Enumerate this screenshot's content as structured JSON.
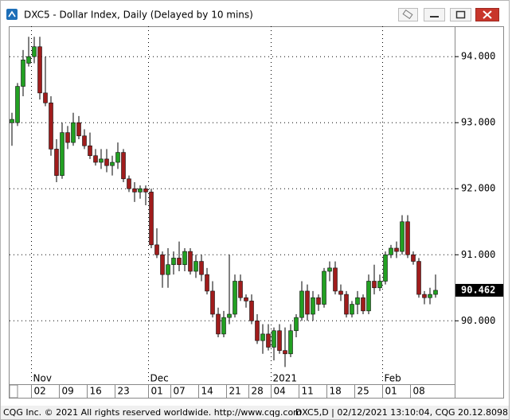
{
  "window": {
    "title": "DXC5 - Dollar Index, Daily (Delayed by 10 mins)"
  },
  "footer": {
    "copyright": "CQG Inc. © 2021 All rights reserved worldwide. http://www.cqg.com",
    "status": "DXC5,D | 02/12/2021 13:10:04, CQG 20.12.8098"
  },
  "chart_data": {
    "type": "candlestick",
    "categories": [
      null,
      null,
      null,
      null,
      "02",
      null,
      null,
      null,
      null,
      "09",
      null,
      null,
      null,
      null,
      "16",
      null,
      null,
      null,
      null,
      "23",
      null,
      null,
      null,
      null,
      null,
      "01",
      null,
      null,
      null,
      "07",
      null,
      null,
      null,
      null,
      "14",
      null,
      null,
      null,
      null,
      "21",
      null,
      null,
      null,
      "28",
      null,
      null,
      null,
      "04",
      null,
      null,
      null,
      null,
      "11",
      null,
      null,
      null,
      null,
      "18",
      null,
      null,
      null,
      null,
      "25",
      null,
      null,
      null,
      null,
      "01",
      null,
      null,
      null,
      null,
      "08",
      null,
      null,
      null,
      null
    ],
    "months": [
      null,
      null,
      null,
      null,
      "Nov",
      null,
      null,
      null,
      null,
      null,
      null,
      null,
      null,
      null,
      null,
      null,
      null,
      null,
      null,
      null,
      null,
      null,
      null,
      null,
      null,
      "Dec",
      null,
      null,
      null,
      null,
      null,
      null,
      null,
      null,
      null,
      null,
      null,
      null,
      null,
      null,
      null,
      null,
      null,
      null,
      null,
      null,
      null,
      "2021",
      null,
      null,
      null,
      null,
      null,
      null,
      null,
      null,
      null,
      null,
      null,
      null,
      null,
      null,
      null,
      null,
      null,
      null,
      null,
      "Feb",
      null,
      null,
      null,
      null,
      null,
      null,
      null,
      null,
      null
    ],
    "open": [
      93.0,
      93.0,
      93.55,
      93.9,
      94.0,
      94.15,
      93.45,
      93.3,
      92.6,
      92.2,
      92.85,
      92.7,
      93.0,
      92.8,
      92.65,
      92.5,
      92.4,
      92.45,
      92.35,
      92.4,
      92.55,
      92.15,
      92.0,
      91.95,
      92.0,
      91.95,
      91.15,
      91.0,
      90.7,
      90.85,
      90.95,
      90.85,
      91.05,
      90.75,
      90.9,
      90.7,
      90.45,
      90.1,
      89.8,
      90.05,
      90.1,
      90.6,
      90.35,
      90.3,
      90.0,
      89.7,
      89.8,
      89.6,
      89.85,
      89.55,
      89.5,
      89.85,
      90.05,
      90.45,
      90.1,
      90.35,
      90.25,
      90.75,
      90.8,
      90.45,
      90.4,
      90.1,
      90.25,
      90.35,
      90.15,
      90.6,
      90.5,
      90.6,
      91.0,
      91.1,
      91.05,
      91.5,
      91.0,
      90.9,
      90.4,
      90.35,
      90.4
    ],
    "high": [
      93.15,
      93.6,
      94.1,
      94.3,
      94.3,
      94.3,
      94.0,
      93.4,
      92.75,
      93.0,
      92.95,
      93.15,
      93.1,
      92.9,
      92.85,
      92.6,
      92.6,
      92.6,
      92.5,
      92.7,
      92.6,
      92.2,
      92.1,
      92.05,
      92.05,
      92.0,
      91.4,
      91.05,
      91.1,
      91.05,
      91.2,
      91.1,
      91.1,
      91.0,
      91.0,
      90.8,
      90.6,
      90.2,
      90.15,
      91.0,
      90.7,
      90.7,
      90.4,
      90.4,
      90.1,
      89.95,
      89.95,
      89.9,
      89.95,
      89.9,
      89.95,
      90.1,
      90.6,
      90.55,
      90.45,
      90.4,
      90.8,
      90.9,
      90.9,
      90.55,
      90.45,
      90.3,
      90.45,
      90.4,
      90.7,
      90.85,
      90.7,
      91.05,
      91.15,
      91.2,
      91.6,
      91.6,
      91.05,
      90.95,
      90.45,
      90.5,
      90.7
    ],
    "low": [
      92.65,
      92.95,
      93.4,
      93.85,
      93.9,
      93.35,
      93.25,
      92.5,
      92.1,
      92.15,
      92.6,
      92.65,
      92.75,
      92.6,
      92.45,
      92.35,
      92.3,
      92.25,
      92.2,
      92.3,
      92.1,
      91.95,
      91.8,
      91.85,
      91.75,
      91.1,
      90.95,
      90.5,
      90.5,
      90.7,
      90.75,
      90.75,
      90.7,
      90.65,
      90.6,
      90.4,
      90.05,
      89.75,
      89.75,
      89.95,
      90.05,
      90.3,
      90.2,
      89.95,
      89.65,
      89.5,
      89.55,
      89.4,
      89.5,
      89.3,
      89.45,
      89.75,
      90.0,
      90.0,
      90.0,
      90.15,
      90.2,
      90.6,
      90.4,
      90.3,
      90.05,
      90.05,
      90.1,
      90.1,
      90.1,
      90.4,
      90.45,
      90.55,
      90.95,
      90.95,
      91.0,
      90.95,
      90.85,
      90.35,
      90.25,
      90.25,
      90.35
    ],
    "close": [
      93.05,
      93.55,
      93.95,
      94.0,
      94.15,
      93.45,
      93.3,
      92.6,
      92.2,
      92.85,
      92.7,
      93.0,
      92.8,
      92.65,
      92.5,
      92.4,
      92.45,
      92.35,
      92.4,
      92.55,
      92.15,
      92.0,
      91.95,
      92.0,
      91.95,
      91.15,
      91.0,
      90.7,
      90.85,
      90.95,
      90.85,
      91.05,
      90.75,
      90.9,
      90.7,
      90.45,
      90.1,
      89.8,
      90.05,
      90.1,
      90.6,
      90.35,
      90.3,
      90.0,
      89.7,
      89.8,
      89.6,
      89.85,
      89.55,
      89.5,
      89.85,
      90.05,
      90.45,
      90.1,
      90.35,
      90.25,
      90.75,
      90.8,
      90.45,
      90.4,
      90.1,
      90.25,
      90.35,
      90.15,
      90.6,
      90.5,
      90.6,
      91.0,
      91.1,
      91.05,
      91.5,
      91.0,
      90.9,
      90.4,
      90.35,
      90.4,
      90.462
    ],
    "up_color": "#22a022",
    "down_color": "#a01c1c",
    "ylim": [
      89.04,
      94.46
    ],
    "yticks": [
      {
        "value": 90,
        "label": "90.000"
      },
      {
        "value": 91,
        "label": "91.000"
      },
      {
        "value": 92,
        "label": "92.000"
      },
      {
        "value": 93,
        "label": "93.000"
      },
      {
        "value": 94,
        "label": "94.000"
      }
    ],
    "last_price": 90.462,
    "grid": true
  }
}
